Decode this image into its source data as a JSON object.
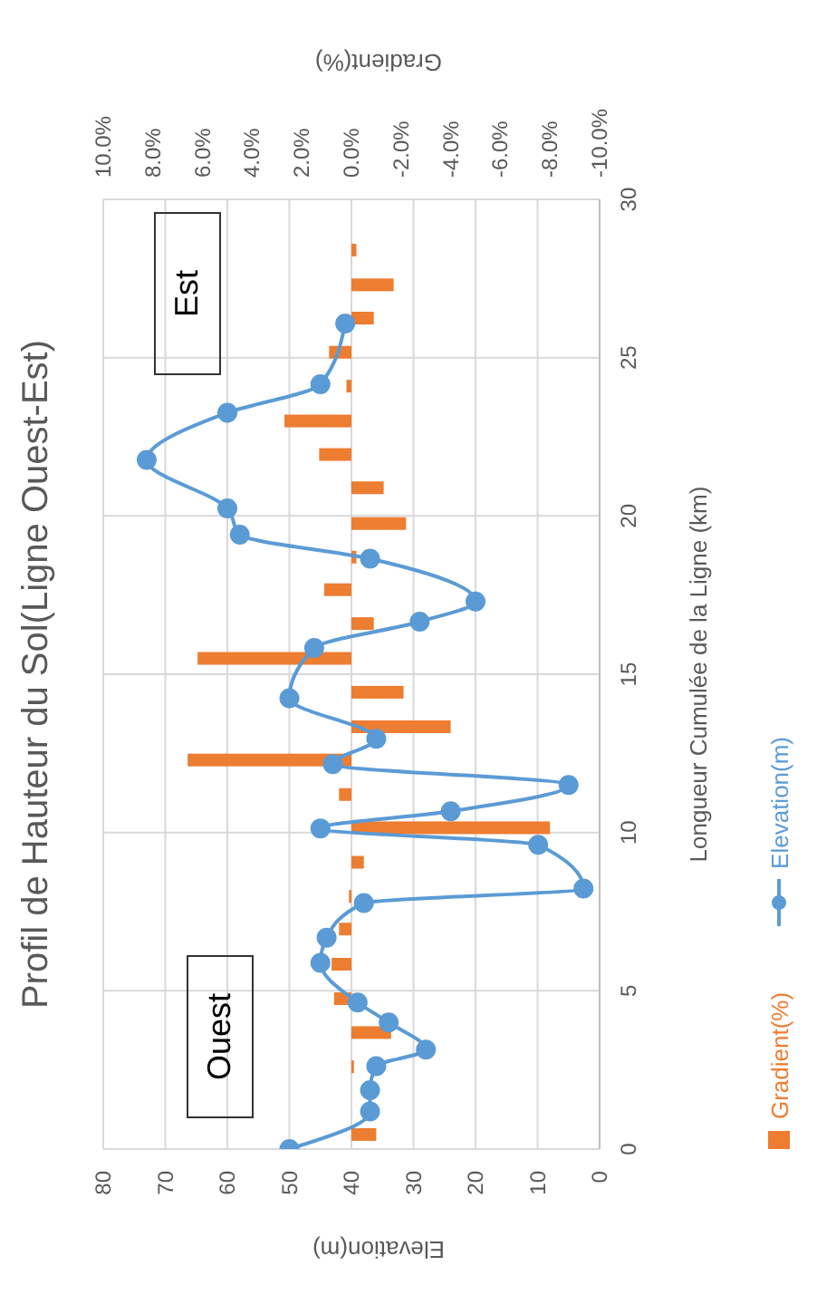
{
  "chart_data": {
    "type": "line",
    "orientation": "horizontal",
    "title": "Profil de Hauteur du Sol(Ligne Ouest-Est)",
    "ylabel": "Longueur Cumulée de la Ligne (km)",
    "xlabel": "Elevation(m)",
    "x2label": "Gradient(%)",
    "annotations": [
      "Ouest",
      "Est"
    ],
    "ylim": [
      0,
      30
    ],
    "yticks": [
      0,
      5,
      10,
      15,
      20,
      25,
      30
    ],
    "xlim": [
      80,
      0
    ],
    "xticks": [
      80,
      70,
      60,
      50,
      40,
      30,
      20,
      10,
      0
    ],
    "x2lim": [
      10,
      -10
    ],
    "x2ticks": [
      {
        "value": 10,
        "label": "10.0%"
      },
      {
        "value": 8,
        "label": "8.0%"
      },
      {
        "value": 6,
        "label": "6.0%"
      },
      {
        "value": 4,
        "label": "4.0%"
      },
      {
        "value": 2,
        "label": "2.0%"
      },
      {
        "value": 0,
        "label": "0.0%"
      },
      {
        "value": -2,
        "label": "-2.0%"
      },
      {
        "value": -4,
        "label": "-4.0%"
      },
      {
        "value": -6,
        "label": "-6.0%"
      },
      {
        "value": -8,
        "label": "-8.0%"
      },
      {
        "value": -10,
        "label": "-10.0%"
      }
    ],
    "series": [
      {
        "name": "Gradient(%)",
        "type": "bar",
        "axis": "x2",
        "color": "#ed7d31",
        "x": [
          0.46,
          2.6,
          3.68,
          4.75,
          5.84,
          6.95,
          7.98,
          9.06,
          10.15,
          11.2,
          12.29,
          13.34,
          14.43,
          15.5,
          16.6,
          17.67,
          18.7,
          19.76,
          20.89,
          21.94,
          23.0,
          24.1,
          25.17,
          26.25,
          27.3,
          28.4
        ],
        "values": [
          -1.0,
          -0.1,
          -1.6,
          0.7,
          0.8,
          0.5,
          0.1,
          -0.5,
          -8.0,
          0.5,
          6.6,
          -4.0,
          -2.1,
          6.2,
          -0.9,
          1.1,
          -0.2,
          -2.2,
          -1.3,
          1.3,
          2.7,
          0.2,
          0.9,
          -0.9,
          -1.7,
          -0.2
        ]
      },
      {
        "name": "Elevation(m)",
        "color": "#5b9bd5",
        "x": [
          0,
          1.19,
          1.86,
          2.62,
          3.14,
          4.0,
          4.63,
          5.88,
          6.68,
          7.77,
          8.23,
          9.61,
          10.13,
          10.67,
          11.5,
          12.16,
          12.96,
          14.24,
          15.83,
          16.66,
          17.3,
          18.65,
          19.41,
          20.24,
          21.77,
          23.26,
          24.16,
          26.08
        ],
        "values": [
          50,
          37,
          37,
          36,
          28,
          34,
          39,
          45,
          44,
          38,
          2.6,
          9.9,
          45,
          24,
          5,
          43,
          36,
          50,
          46,
          29,
          20,
          37,
          58,
          60,
          73,
          60,
          45,
          41
        ]
      }
    ],
    "marker": "circle",
    "line_style": "solid",
    "grid": true,
    "legend": "bottom"
  }
}
